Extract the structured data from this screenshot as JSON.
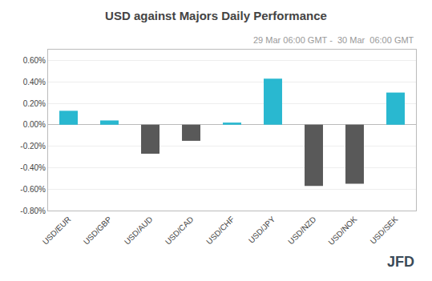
{
  "chart_data": {
    "type": "bar",
    "title": "USD against Majors Daily Performance",
    "subtitle": "29 Mar 06:00 GMT -  30 Mar  06:00 GMT",
    "annotations": [
      "JFD"
    ],
    "categories": [
      "USD/EUR",
      "USD/GBP",
      "USD/AUD",
      "USD/CAD",
      "USD/CHF",
      "USD/JPY",
      "USD/NZD",
      "USD/NOK",
      "USD/SEK"
    ],
    "values": [
      0.0013,
      0.0004,
      -0.0027,
      -0.0015,
      0.0002,
      0.0043,
      -0.0057,
      -0.0055,
      0.003
    ],
    "colors": [
      "#29b8d0",
      "#29b8d0",
      "#595959",
      "#595959",
      "#29b8d0",
      "#29b8d0",
      "#595959",
      "#595959",
      "#29b8d0"
    ],
    "ylim": [
      -0.008,
      0.007
    ],
    "yticks": [
      {
        "value": -0.008,
        "label": "-0.80%"
      },
      {
        "value": -0.006,
        "label": "-0.60%"
      },
      {
        "value": -0.004,
        "label": "-0.40%"
      },
      {
        "value": -0.002,
        "label": "-0.20%"
      },
      {
        "value": 0.0,
        "label": "0.00%"
      },
      {
        "value": 0.002,
        "label": "0.20%"
      },
      {
        "value": 0.004,
        "label": "0.40%"
      },
      {
        "value": 0.006,
        "label": "0.60%"
      }
    ],
    "grid": true
  }
}
